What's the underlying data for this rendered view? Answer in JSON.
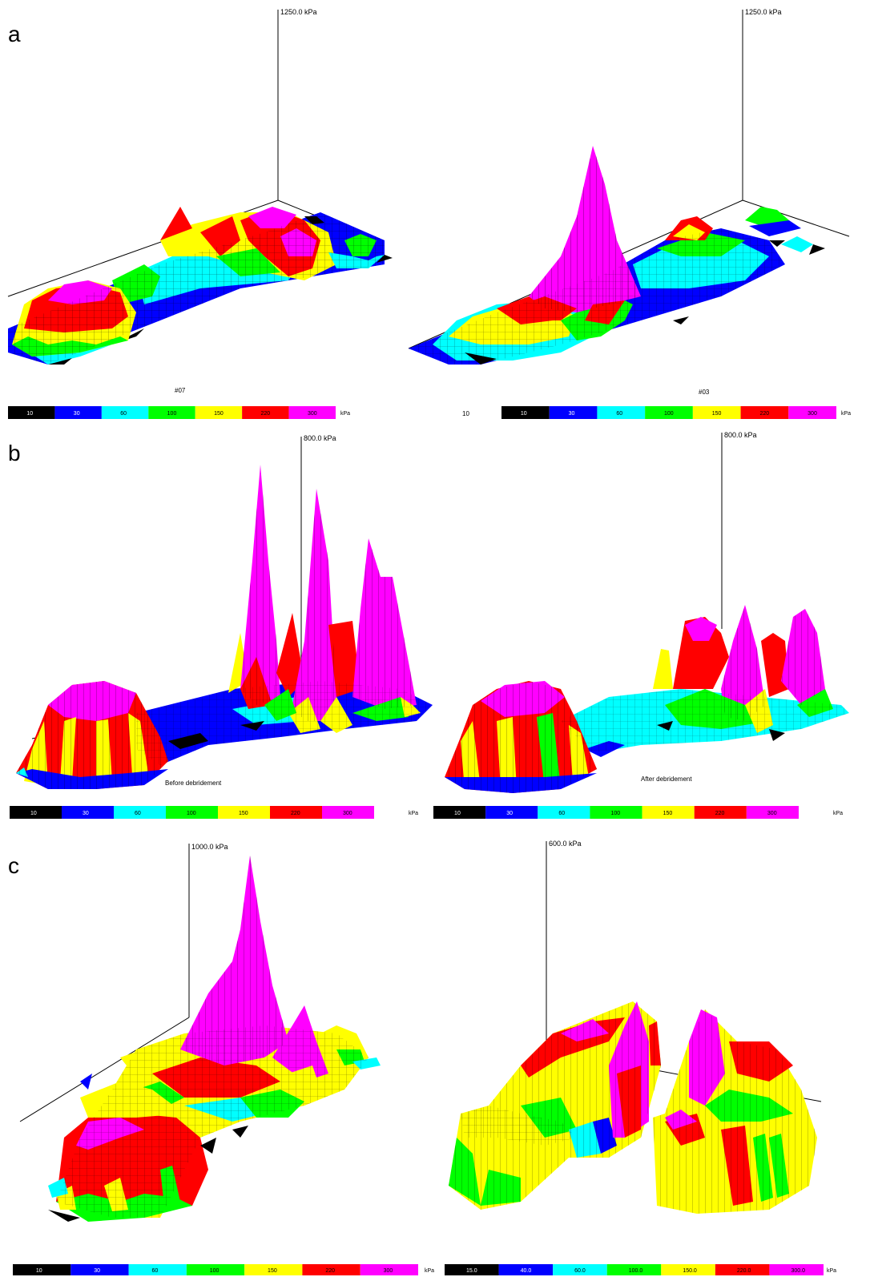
{
  "palette": {
    "black": "#000000",
    "blue": "#0000ff",
    "cyan": "#00ffff",
    "green": "#00ff00",
    "yellow": "#ffff00",
    "red": "#ff0000",
    "magenta": "#ff00ff"
  },
  "panels": {
    "a": {
      "label": "a",
      "left": {
        "axis_max": "1250.0 kPa",
        "caption": "#07",
        "scale": [
          "10",
          "30",
          "60",
          "100",
          "150",
          "220",
          "300"
        ],
        "unit": "kPa"
      },
      "right": {
        "axis_max": "1250.0 kPa",
        "caption": "#03",
        "extra_label": "10",
        "scale": [
          "10",
          "30",
          "60",
          "100",
          "150",
          "220",
          "300"
        ],
        "unit": "kPa"
      }
    },
    "b": {
      "label": "b",
      "left": {
        "axis_max": "800.0 kPa",
        "caption": "Before debridement",
        "scale": [
          "10",
          "30",
          "60",
          "100",
          "150",
          "220",
          "300"
        ],
        "unit": "kPa"
      },
      "right": {
        "axis_max": "800.0 kPa",
        "caption": "After debridement",
        "scale": [
          "10",
          "30",
          "60",
          "100",
          "150",
          "220",
          "300"
        ],
        "unit": "kPa"
      }
    },
    "c": {
      "label": "c",
      "left": {
        "axis_max": "1000.0 kPa",
        "scale": [
          "10",
          "30",
          "60",
          "100",
          "150",
          "220",
          "300"
        ],
        "unit": "kPa"
      },
      "right": {
        "axis_max": "600.0 kPa",
        "scale": [
          "15.0",
          "40.0",
          "60.0",
          "100.0",
          "150.0",
          "220.0",
          "300.0"
        ],
        "unit": "kPa"
      }
    }
  }
}
